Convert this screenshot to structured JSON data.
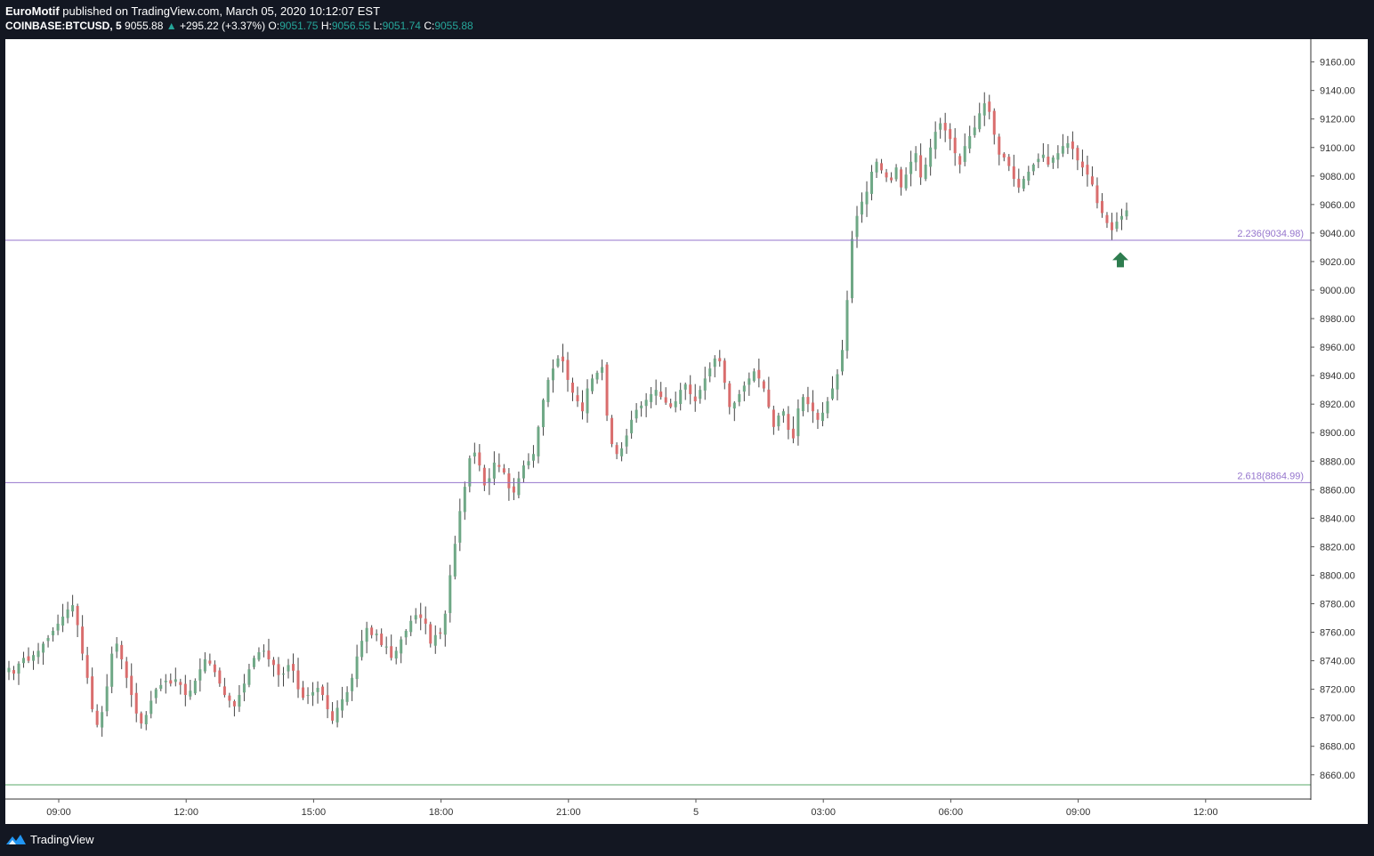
{
  "header": {
    "author": "EuroMotif",
    "published_text": "published on TradingView.com, March 05, 2020 10:12:07 EST",
    "symbol": "COINBASE:BTCUSD, 5",
    "last_price": "9055.88",
    "change_arrow": "▲",
    "change": "+295.22 (+3.37%)",
    "open_label": "O:",
    "open": "9051.75",
    "high_label": "H:",
    "high": "9056.55",
    "low_label": "L:",
    "low": "9051.74",
    "close_label": "C:",
    "close": "9055.88"
  },
  "footer": {
    "brand": "TradingView",
    "logo_icon": "tradingview-logo-icon"
  },
  "colors": {
    "up": "#26a69a",
    "up_candle": "#6fa886",
    "down_candle": "#d96d6d",
    "fib_line": "#9575cd",
    "marker_arrow": "#2e7d4f",
    "background_dark": "#131722"
  },
  "chart_data": {
    "type": "candlestick",
    "symbol": "COINBASE:BTCUSD",
    "interval": "5",
    "y_axis": {
      "ticks": [
        "8660.00",
        "8680.00",
        "8700.00",
        "8720.00",
        "8740.00",
        "8760.00",
        "8780.00",
        "8800.00",
        "8820.00",
        "8840.00",
        "8860.00",
        "8880.00",
        "8900.00",
        "8920.00",
        "8940.00",
        "8960.00",
        "8980.00",
        "9000.00",
        "9020.00",
        "9040.00",
        "9060.00",
        "9080.00",
        "9100.00",
        "9120.00",
        "9140.00",
        "9160.00"
      ],
      "ylim": [
        8643,
        9176
      ]
    },
    "x_axis": {
      "ticks": [
        "09:00",
        "12:00",
        "15:00",
        "18:00",
        "21:00",
        "5",
        "03:00",
        "06:00",
        "09:00",
        "12:00"
      ]
    },
    "fib_levels": [
      {
        "label": "2.236(9034.98)",
        "value": 9034.98
      },
      {
        "label": "2.618(8864.99)",
        "value": 8864.99
      }
    ],
    "horizontal_line": {
      "value": 8653
    },
    "marker": {
      "type": "up-arrow",
      "price": 9021
    },
    "close_series": [
      8735,
      8731,
      8738,
      8742,
      8740,
      8744,
      8747,
      8752,
      8756,
      8761,
      8766,
      8771,
      8776,
      8779,
      8765,
      8745,
      8728,
      8706,
      8695,
      8704,
      8722,
      8745,
      8752,
      8741,
      8728,
      8716,
      8703,
      8696,
      8702,
      8712,
      8720,
      8723,
      8726,
      8724,
      8727,
      8723,
      8716,
      8719,
      8726,
      8734,
      8741,
      8738,
      8732,
      8724,
      8716,
      8712,
      8708,
      8716,
      8724,
      8734,
      8742,
      8746,
      8747,
      8741,
      8737,
      8730,
      8731,
      8737,
      8733,
      8720,
      8714,
      8716,
      8718,
      8721,
      8716,
      8706,
      8698,
      8707,
      8713,
      8718,
      8728,
      8743,
      8754,
      8763,
      8758,
      8759,
      8751,
      8750,
      8742,
      8747,
      8755,
      8761,
      8768,
      8772,
      8770,
      8766,
      8752,
      8758,
      8759,
      8773,
      8800,
      8822,
      8845,
      8862,
      8882,
      8886,
      8877,
      8863,
      8868,
      8879,
      8876,
      8872,
      8861,
      8858,
      8868,
      8877,
      8880,
      8885,
      8904,
      8923,
      8937,
      8945,
      8952,
      8950,
      8937,
      8928,
      8922,
      8915,
      8931,
      8938,
      8942,
      8946,
      8912,
      8892,
      8885,
      8889,
      8898,
      8909,
      8916,
      8919,
      8923,
      8927,
      8930,
      8925,
      8921,
      8918,
      8922,
      8930,
      8934,
      8927,
      8922,
      8930,
      8938,
      8945,
      8952,
      8950,
      8935,
      8918,
      8921,
      8927,
      8933,
      8938,
      8943,
      8938,
      8931,
      8918,
      8904,
      8912,
      8915,
      8902,
      8896,
      8917,
      8925,
      8920,
      8915,
      8909,
      8914,
      8922,
      8931,
      8941,
      8958,
      8993,
      9036,
      9052,
      9062,
      9069,
      9083,
      9090,
      9084,
      9079,
      9077,
      9086,
      9072,
      9081,
      9090,
      9096,
      9079,
      9088,
      9100,
      9111,
      9117,
      9112,
      9106,
      9096,
      9088,
      9101,
      9108,
      9114,
      9124,
      9131,
      9125,
      9109,
      9095,
      9093,
      9087,
      9078,
      9072,
      9078,
      9083,
      9088,
      9092,
      9095,
      9088,
      9093,
      9096,
      9101,
      9103,
      9099,
      9091,
      9086,
      9081,
      9074,
      9061,
      9054,
      9047,
      9042,
      9048,
      9052,
      9055.88
    ]
  }
}
